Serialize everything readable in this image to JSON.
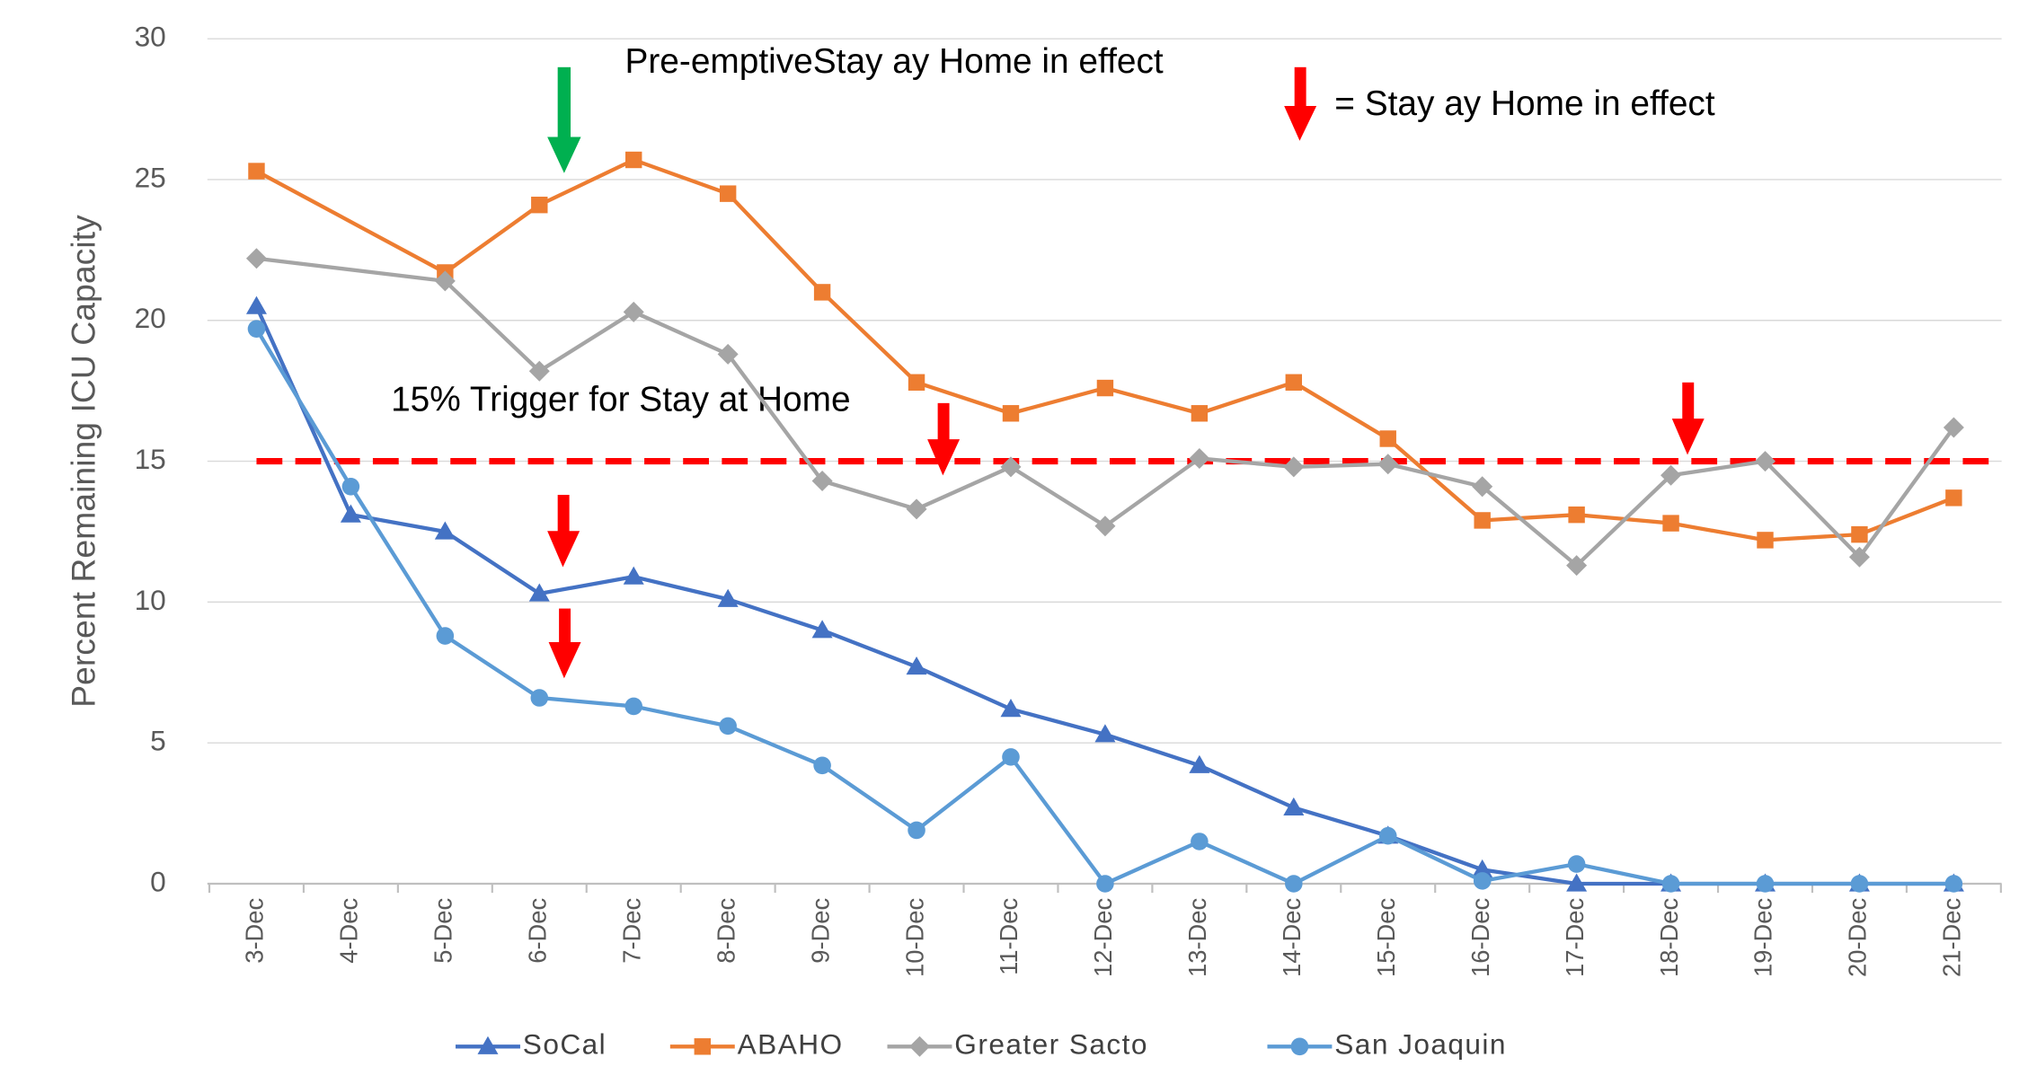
{
  "chart_data": {
    "type": "line",
    "y_label": "Percent Remaining ICU Capacity",
    "categories": [
      "3-Dec",
      "4-Dec",
      "5-Dec",
      "6-Dec",
      "7-Dec",
      "8-Dec",
      "9-Dec",
      "10-Dec",
      "11-Dec",
      "12-Dec",
      "13-Dec",
      "14-Dec",
      "15-Dec",
      "16-Dec",
      "17-Dec",
      "18-Dec",
      "19-Dec",
      "20-Dec",
      "21-Dec"
    ],
    "series": [
      {
        "name": "SoCal",
        "color": "#4472c4",
        "marker": "triangle",
        "values": [
          20.5,
          13.1,
          12.5,
          10.3,
          10.9,
          10.1,
          9.0,
          7.7,
          6.2,
          5.3,
          4.2,
          2.7,
          1.7,
          0.5,
          0,
          0,
          0,
          0,
          0
        ]
      },
      {
        "name": "ABAHO",
        "color": "#ed7d31",
        "marker": "square",
        "values": [
          25.3,
          null,
          21.7,
          24.1,
          25.7,
          24.5,
          21.0,
          17.8,
          16.7,
          17.6,
          16.7,
          17.8,
          15.8,
          12.9,
          13.1,
          12.8,
          12.2,
          12.4,
          13.7
        ]
      },
      {
        "name": "Greater Sacto",
        "color": "#a5a5a5",
        "marker": "diamond",
        "values": [
          22.2,
          null,
          21.4,
          18.2,
          20.3,
          18.8,
          14.3,
          13.3,
          14.8,
          12.7,
          15.1,
          14.8,
          14.9,
          14.1,
          11.3,
          14.5,
          15.0,
          11.6,
          16.2
        ]
      },
      {
        "name": "San Joaquin",
        "color": "#5b9bd5",
        "marker": "circle",
        "values": [
          19.7,
          14.1,
          8.8,
          6.6,
          6.3,
          5.6,
          4.2,
          1.9,
          4.5,
          0,
          1.5,
          0,
          1.7,
          0.1,
          0.7,
          0,
          0,
          0,
          0
        ]
      }
    ],
    "span_gaps": true,
    "ylim": [
      0,
      30
    ],
    "yticks": [
      0,
      5,
      10,
      15,
      20,
      25,
      30
    ],
    "grid": true,
    "legend": "bottom",
    "threshold": {
      "value": 15,
      "color": "#ff0000",
      "label": "15% Trigger for Stay at Home"
    },
    "annotations": [
      "Pre-emptiveStay ay Home in effect",
      "= Stay ay Home in effect"
    ]
  }
}
